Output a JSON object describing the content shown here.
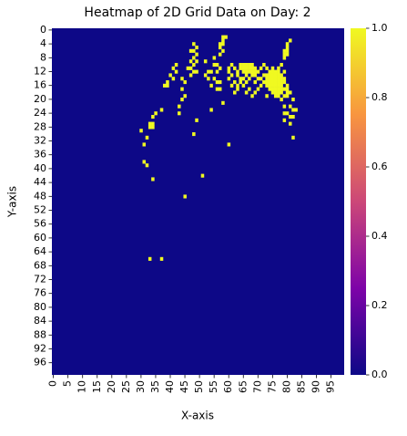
{
  "chart_data": {
    "type": "heatmap",
    "title": "Heatmap of 2D Grid Data on Day: 2",
    "x_label": "X-axis",
    "y_label": "Y-axis",
    "xlim": [
      0,
      100
    ],
    "ylim": [
      0,
      100
    ],
    "xticks": [
      0,
      5,
      10,
      15,
      20,
      25,
      30,
      35,
      40,
      45,
      50,
      55,
      60,
      65,
      70,
      75,
      80,
      85,
      90,
      95
    ],
    "yticks": [
      0,
      4,
      8,
      12,
      16,
      20,
      24,
      28,
      32,
      36,
      40,
      44,
      48,
      52,
      56,
      60,
      64,
      68,
      72,
      76,
      80,
      84,
      88,
      92,
      96
    ],
    "clim": [
      0,
      1
    ],
    "cticks": [
      {
        "value": 0,
        "label": "0.0"
      },
      {
        "value": 0.2,
        "label": "0.2"
      },
      {
        "value": 0.4,
        "label": "0.4"
      },
      {
        "value": 0.6,
        "label": "0.6"
      },
      {
        "value": 0.8,
        "label": "0.8"
      },
      {
        "value": 1,
        "label": "1.0"
      }
    ],
    "colors": [
      "#0d0887",
      "#7e03a8",
      "#cc4778",
      "#f89540",
      "#f0f921"
    ],
    "cells": [
      [
        58,
        2,
        1
      ],
      [
        59,
        2,
        1
      ],
      [
        58,
        3,
        1
      ],
      [
        57,
        4,
        1
      ],
      [
        58,
        4,
        1
      ],
      [
        57,
        5,
        1
      ],
      [
        58,
        6,
        1
      ],
      [
        57,
        7,
        1
      ],
      [
        48,
        4,
        1
      ],
      [
        49,
        5,
        1
      ],
      [
        48,
        6,
        1
      ],
      [
        47,
        6,
        1
      ],
      [
        49,
        7,
        1
      ],
      [
        48,
        8,
        1
      ],
      [
        47,
        9,
        1
      ],
      [
        49,
        9,
        1
      ],
      [
        48,
        10,
        1
      ],
      [
        46,
        11,
        1
      ],
      [
        47,
        11,
        1
      ],
      [
        48,
        12,
        1
      ],
      [
        49,
        12,
        1
      ],
      [
        47,
        13,
        1
      ],
      [
        81,
        3,
        1
      ],
      [
        80,
        4,
        1
      ],
      [
        80,
        5,
        1
      ],
      [
        79,
        6,
        1
      ],
      [
        80,
        6,
        1
      ],
      [
        79,
        7,
        1
      ],
      [
        80,
        7,
        1
      ],
      [
        79,
        8,
        1
      ],
      [
        52,
        9,
        1
      ],
      [
        55,
        8,
        1
      ],
      [
        55,
        10,
        1
      ],
      [
        56,
        10,
        1
      ],
      [
        57,
        11,
        1
      ],
      [
        53,
        12,
        1
      ],
      [
        54,
        12,
        1
      ],
      [
        56,
        12,
        1
      ],
      [
        52,
        13,
        1
      ],
      [
        53,
        14,
        1
      ],
      [
        55,
        14,
        1
      ],
      [
        56,
        15,
        1
      ],
      [
        57,
        15,
        1
      ],
      [
        54,
        16,
        1
      ],
      [
        56,
        17,
        1
      ],
      [
        57,
        17,
        1
      ],
      [
        42,
        10,
        1
      ],
      [
        41,
        11,
        1
      ],
      [
        42,
        12,
        1
      ],
      [
        40,
        13,
        1
      ],
      [
        41,
        14,
        1
      ],
      [
        39,
        15,
        1
      ],
      [
        38,
        16,
        1
      ],
      [
        39,
        16,
        1
      ],
      [
        44,
        14,
        1
      ],
      [
        45,
        15,
        1
      ],
      [
        44,
        17,
        1
      ],
      [
        45,
        19,
        1
      ],
      [
        44,
        20,
        1
      ],
      [
        43,
        22,
        1
      ],
      [
        61,
        10,
        1
      ],
      [
        64,
        10,
        1
      ],
      [
        65,
        10,
        1
      ],
      [
        66,
        10,
        1
      ],
      [
        67,
        10,
        1
      ],
      [
        68,
        10,
        1
      ],
      [
        72,
        10,
        1
      ],
      [
        78,
        10,
        1
      ],
      [
        60,
        11,
        1
      ],
      [
        62,
        11,
        1
      ],
      [
        64,
        11,
        1
      ],
      [
        65,
        11,
        1
      ],
      [
        66,
        11,
        1
      ],
      [
        67,
        11,
        1
      ],
      [
        68,
        11,
        1
      ],
      [
        69,
        11,
        1
      ],
      [
        71,
        11,
        1
      ],
      [
        73,
        11,
        1
      ],
      [
        75,
        11,
        1
      ],
      [
        77,
        11,
        1
      ],
      [
        60,
        12,
        1
      ],
      [
        63,
        12,
        1
      ],
      [
        65,
        12,
        1
      ],
      [
        66,
        12,
        1
      ],
      [
        67,
        12,
        1
      ],
      [
        68,
        12,
        1
      ],
      [
        69,
        12,
        1
      ],
      [
        70,
        12,
        1
      ],
      [
        74,
        12,
        1
      ],
      [
        75,
        12,
        1
      ],
      [
        76,
        12,
        1
      ],
      [
        77,
        12,
        1
      ],
      [
        79,
        12,
        1
      ],
      [
        61,
        13,
        1
      ],
      [
        63,
        13,
        1
      ],
      [
        66,
        13,
        1
      ],
      [
        68,
        13,
        1
      ],
      [
        69,
        13,
        1
      ],
      [
        72,
        13,
        1
      ],
      [
        73,
        13,
        1
      ],
      [
        74,
        13,
        1
      ],
      [
        75,
        13,
        1
      ],
      [
        76,
        13,
        1
      ],
      [
        77,
        13,
        1
      ],
      [
        78,
        13,
        1
      ],
      [
        60,
        14,
        1
      ],
      [
        64,
        14,
        1
      ],
      [
        65,
        14,
        1
      ],
      [
        67,
        14,
        1
      ],
      [
        70,
        14,
        1
      ],
      [
        71,
        14,
        1
      ],
      [
        73,
        14,
        1
      ],
      [
        74,
        14,
        1
      ],
      [
        75,
        14,
        1
      ],
      [
        76,
        14,
        1
      ],
      [
        77,
        14,
        1
      ],
      [
        78,
        14,
        1
      ],
      [
        79,
        14,
        1
      ],
      [
        62,
        15,
        1
      ],
      [
        64,
        15,
        1
      ],
      [
        66,
        15,
        1
      ],
      [
        69,
        15,
        1
      ],
      [
        72,
        15,
        1
      ],
      [
        73,
        15,
        1
      ],
      [
        74,
        15,
        1
      ],
      [
        75,
        15,
        1
      ],
      [
        76,
        15,
        1
      ],
      [
        77,
        15,
        1
      ],
      [
        78,
        15,
        1
      ],
      [
        79,
        15,
        1
      ],
      [
        61,
        16,
        1
      ],
      [
        63,
        16,
        1
      ],
      [
        65,
        16,
        1
      ],
      [
        71,
        16,
        1
      ],
      [
        73,
        16,
        1
      ],
      [
        74,
        16,
        1
      ],
      [
        75,
        16,
        1
      ],
      [
        76,
        16,
        1
      ],
      [
        77,
        16,
        1
      ],
      [
        78,
        16,
        1
      ],
      [
        80,
        16,
        1
      ],
      [
        63,
        17,
        1
      ],
      [
        67,
        17,
        1
      ],
      [
        70,
        17,
        1
      ],
      [
        74,
        17,
        1
      ],
      [
        75,
        17,
        1
      ],
      [
        76,
        17,
        1
      ],
      [
        77,
        17,
        1
      ],
      [
        78,
        17,
        1
      ],
      [
        79,
        17,
        1
      ],
      [
        80,
        17,
        1
      ],
      [
        62,
        18,
        1
      ],
      [
        66,
        18,
        1
      ],
      [
        69,
        18,
        1
      ],
      [
        75,
        18,
        1
      ],
      [
        76,
        18,
        1
      ],
      [
        77,
        18,
        1
      ],
      [
        78,
        18,
        1
      ],
      [
        80,
        18,
        1
      ],
      [
        81,
        18,
        1
      ],
      [
        68,
        19,
        1
      ],
      [
        73,
        19,
        1
      ],
      [
        76,
        19,
        1
      ],
      [
        77,
        19,
        1
      ],
      [
        79,
        19,
        1
      ],
      [
        80,
        19,
        1
      ],
      [
        78,
        20,
        1
      ],
      [
        82,
        20,
        1
      ],
      [
        79,
        22,
        1
      ],
      [
        81,
        22,
        1
      ],
      [
        82,
        23,
        1
      ],
      [
        83,
        23,
        1
      ],
      [
        79,
        24,
        1
      ],
      [
        80,
        24,
        1
      ],
      [
        81,
        25,
        1
      ],
      [
        82,
        25,
        1
      ],
      [
        79,
        26,
        1
      ],
      [
        81,
        27,
        1
      ],
      [
        82,
        31,
        1
      ],
      [
        35,
        24,
        1
      ],
      [
        37,
        23,
        1
      ],
      [
        34,
        25,
        1
      ],
      [
        33,
        27,
        1
      ],
      [
        34,
        27,
        1
      ],
      [
        33,
        28,
        1
      ],
      [
        34,
        28,
        1
      ],
      [
        30,
        29,
        1
      ],
      [
        32,
        31,
        1
      ],
      [
        31,
        33,
        1
      ],
      [
        31,
        38,
        1
      ],
      [
        32,
        39,
        1
      ],
      [
        34,
        43,
        1
      ],
      [
        43,
        24,
        1
      ],
      [
        49,
        26,
        1
      ],
      [
        54,
        23,
        1
      ],
      [
        58,
        21,
        1
      ],
      [
        48,
        30,
        1
      ],
      [
        60,
        33,
        1
      ],
      [
        51,
        42,
        1
      ],
      [
        45,
        48,
        1
      ],
      [
        33,
        66,
        1
      ],
      [
        37,
        66,
        1
      ]
    ]
  }
}
